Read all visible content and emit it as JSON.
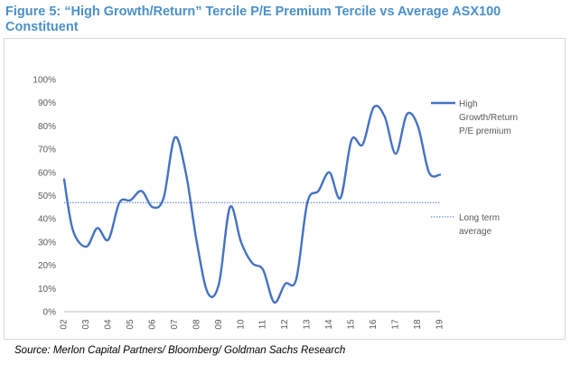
{
  "figure": {
    "title": "Figure 5: “High Growth/Return” Tercile P/E Premium Tercile vs Average ASX100 Constituent",
    "source": "Source: Merlon Capital Partners/ Bloomberg/ Goldman Sachs Research"
  },
  "colors": {
    "title": "#4a90c8",
    "series": "#4472c4",
    "axis_text": "#595959",
    "border": "#d9d9d9"
  },
  "chart_data": {
    "type": "line",
    "title": "",
    "xlabel": "",
    "ylabel": "",
    "ylim": [
      0,
      100
    ],
    "yticks": [
      "0%",
      "10%",
      "20%",
      "30%",
      "40%",
      "50%",
      "60%",
      "70%",
      "80%",
      "90%",
      "100%"
    ],
    "xlim": [
      2002,
      2019
    ],
    "xticks": [
      "02",
      "03",
      "04",
      "05",
      "06",
      "07",
      "08",
      "09",
      "10",
      "11",
      "12",
      "13",
      "14",
      "15",
      "16",
      "17",
      "18",
      "19"
    ],
    "grid": false,
    "legend_position": "right",
    "series": [
      {
        "name": "High Growth/Return P/E premium",
        "legend_lines": [
          "High",
          "Growth/Return",
          "P/E premium"
        ],
        "style": "solid",
        "x": [
          2002.0,
          2002.4,
          2003.0,
          2003.5,
          2004.0,
          2004.5,
          2005.0,
          2005.5,
          2006.0,
          2006.5,
          2007.0,
          2007.5,
          2008.0,
          2008.5,
          2009.0,
          2009.5,
          2010.0,
          2010.5,
          2011.0,
          2011.5,
          2012.0,
          2012.5,
          2013.0,
          2013.5,
          2014.0,
          2014.5,
          2015.0,
          2015.5,
          2016.0,
          2016.5,
          2017.0,
          2017.5,
          2018.0,
          2018.5,
          2019.0
        ],
        "y": [
          57,
          35,
          28,
          36,
          31,
          47,
          48,
          52,
          45,
          49,
          75,
          60,
          30,
          8,
          12,
          45,
          30,
          21,
          18,
          4,
          12,
          14,
          47,
          52,
          60,
          49,
          74,
          72,
          88,
          84,
          68,
          85,
          80,
          60,
          59
        ]
      },
      {
        "name": "Long term average",
        "legend_lines": [
          "Long term",
          "average"
        ],
        "style": "dotted",
        "x": [
          2002,
          2019
        ],
        "y": [
          47,
          47
        ]
      }
    ]
  }
}
